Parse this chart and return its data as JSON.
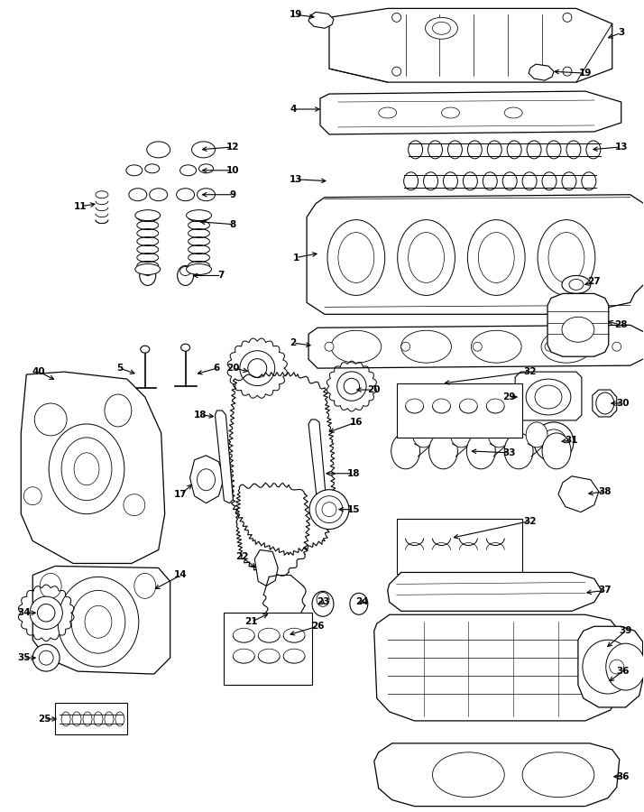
{
  "bg_color": "#ffffff",
  "line_color": "#000000",
  "fig_width": 7.14,
  "fig_height": 9.0,
  "dpi": 100
}
